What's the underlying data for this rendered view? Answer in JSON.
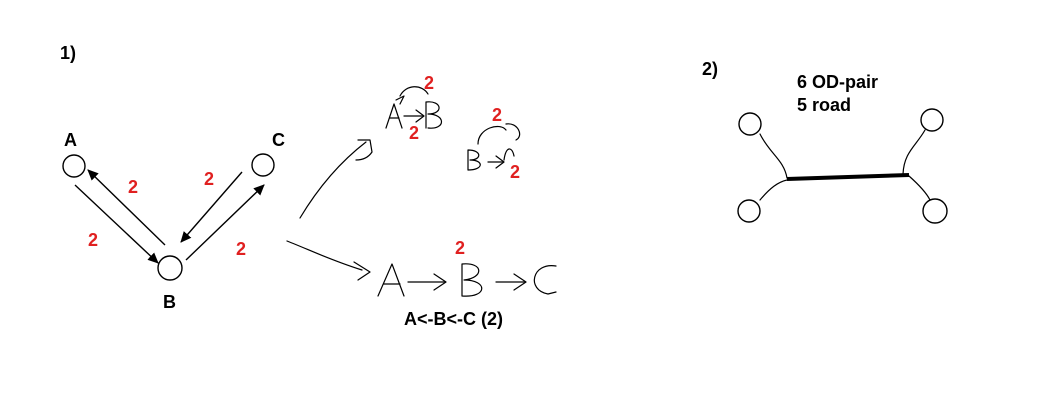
{
  "colors": {
    "ink": "#000000",
    "accent_red": "#e02020",
    "background": "#ffffff"
  },
  "diagram1": {
    "section_label": "1)",
    "node_a": "A",
    "node_b": "B",
    "node_c": "C",
    "weight_a_to_b": "2",
    "weight_b_to_a": "2",
    "weight_c_to_b": "2",
    "weight_b_to_c": "2",
    "sketch_top_weight_1": "2",
    "sketch_top_weight_2": "2",
    "sketch_top_weight_3": "2",
    "sketch_top_weight_4": "2",
    "sketch_bottom_weight": "2",
    "chain_label": "A<-B<-C (2)"
  },
  "diagram2": {
    "section_label": "2)",
    "od_pairs": "6 OD-pair",
    "roads": "5 road"
  }
}
